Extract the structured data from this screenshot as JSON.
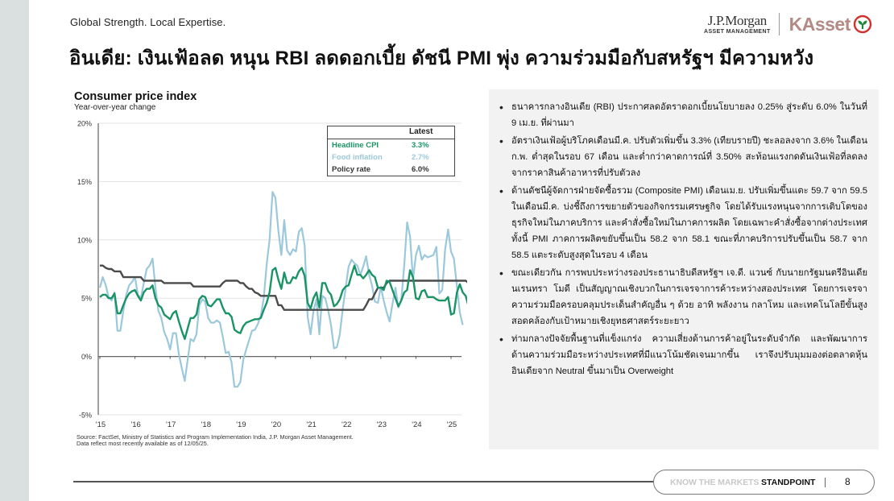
{
  "header": {
    "tagline": "Global Strength. Local Expertise.",
    "title": "อินเดีย: เงินเฟ้อลด หนุน RBI ลดดอกเบี้ย ดัชนี PMI พุ่ง ความร่วมมือกับสหรัฐฯ มีความหวัง",
    "logos": {
      "jpm_name": "J.P.Morgan",
      "jpm_sub": "ASSET MANAGEMENT",
      "kasset": "KAsset",
      "kasset_icon": "kasset-leaf-icon"
    }
  },
  "chart": {
    "title": "Consumer price index",
    "subtitle": "Year-over-year change",
    "legend": {
      "header": "Latest",
      "rows": [
        {
          "label": "Headline CPI",
          "value": "3.3%",
          "color": "#1a9466"
        },
        {
          "label": "Food inflation",
          "value": "2.7%",
          "color": "#9cc8dc"
        },
        {
          "label": "Policy rate",
          "value": "6.0%",
          "color": "#333333"
        }
      ]
    },
    "source_line1": "Source: FactSet, Ministry of Statistics and Program Implementation India, J.P. Morgan Asset Management.",
    "source_line2": "Data reflect most recently available as of 12/05/25."
  },
  "chart_data": {
    "type": "line",
    "title": "Consumer price index",
    "subtitle": "Year-over-year change",
    "xlabel": "",
    "ylabel": "",
    "ylim": [
      -5,
      20
    ],
    "yticks": [
      "20%",
      "15%",
      "10%",
      "5%",
      "0%",
      "-5%"
    ],
    "ytick_values": [
      20,
      15,
      10,
      5,
      0,
      -5
    ],
    "xticks": [
      "'15",
      "'16",
      "'17",
      "'18",
      "'19",
      "'20",
      "'21",
      "'22",
      "'23",
      "'24",
      "'25"
    ],
    "x_start": "2015-01",
    "x_frequency": "monthly",
    "grid": true,
    "legend_position": "top-right table",
    "series": [
      {
        "name": "Headline CPI",
        "color": "#1a9466",
        "latest": 3.3,
        "values": [
          5.1,
          5.3,
          5.3,
          5.0,
          5.0,
          5.4,
          3.7,
          3.7,
          4.4,
          5.0,
          5.4,
          5.6,
          5.7,
          5.2,
          4.8,
          5.5,
          5.8,
          5.8,
          6.1,
          5.0,
          4.4,
          4.2,
          3.6,
          3.4,
          3.2,
          3.7,
          3.9,
          3.0,
          2.2,
          1.5,
          2.4,
          3.3,
          3.3,
          3.6,
          4.9,
          5.2,
          5.1,
          4.4,
          4.3,
          4.6,
          4.9,
          4.9,
          4.2,
          3.7,
          3.7,
          3.4,
          2.3,
          2.1,
          2.0,
          2.6,
          2.9,
          3.0,
          3.1,
          3.2,
          3.2,
          3.3,
          4.0,
          4.6,
          5.5,
          7.4,
          7.6,
          6.6,
          5.8,
          7.2,
          6.3,
          6.3,
          6.8,
          6.7,
          7.3,
          7.6,
          6.9,
          4.6,
          4.1,
          5.0,
          5.5,
          4.2,
          6.3,
          6.3,
          5.6,
          5.3,
          4.3,
          4.5,
          4.9,
          5.7,
          6.0,
          6.1,
          7.0,
          7.8,
          7.0,
          7.0,
          6.7,
          7.0,
          7.4,
          7.0,
          6.8,
          5.9,
          5.9,
          5.7,
          6.5,
          6.4,
          5.7,
          5.0,
          4.3,
          4.8,
          5.5,
          5.7,
          7.4,
          6.8,
          5.0,
          4.9,
          5.6,
          5.7,
          5.1,
          5.1,
          5.1,
          4.9,
          4.8,
          4.8,
          4.8,
          5.1,
          3.6,
          3.7,
          5.5,
          6.2,
          5.5,
          5.2,
          4.3,
          3.6,
          3.3
        ]
      },
      {
        "name": "Food inflation",
        "color": "#9cc8dc",
        "latest": 2.7,
        "values": [
          5.9,
          6.8,
          6.1,
          5.1,
          4.8,
          5.5,
          2.2,
          2.2,
          3.9,
          5.3,
          6.1,
          6.4,
          6.8,
          5.3,
          5.0,
          6.3,
          7.5,
          7.8,
          8.4,
          5.9,
          3.9,
          3.3,
          2.1,
          1.5,
          0.6,
          2.0,
          2.0,
          0.2,
          -1.0,
          -2.1,
          -0.3,
          1.5,
          1.3,
          1.9,
          4.4,
          4.9,
          4.7,
          3.3,
          2.9,
          2.9,
          3.1,
          2.9,
          1.7,
          0.3,
          0.4,
          -0.5,
          -2.6,
          -2.6,
          -2.2,
          -0.3,
          0.6,
          1.4,
          2.2,
          2.3,
          2.8,
          3.5,
          5.0,
          7.9,
          10.0,
          14.1,
          13.6,
          10.8,
          8.7,
          11.7,
          9.1,
          8.7,
          9.2,
          9.0,
          10.7,
          11.0,
          9.5,
          3.4,
          1.9,
          3.9,
          4.9,
          1.9,
          5.2,
          5.0,
          4.0,
          2.7,
          0.7,
          0.8,
          1.9,
          4.1,
          5.9,
          7.7,
          8.3,
          8.0,
          7.8,
          7.0,
          7.7,
          8.6,
          7.0,
          6.1,
          4.7,
          4.6,
          6.0,
          4.8,
          3.8,
          3.0,
          4.5,
          5.9,
          4.2,
          4.8,
          7.8,
          11.5,
          10.3,
          6.6,
          8.7,
          9.5,
          8.3,
          8.7,
          8.5,
          8.6,
          8.7,
          9.4,
          5.4,
          5.7,
          9.2,
          10.9,
          9.0,
          8.4,
          6.0,
          3.8,
          2.7
        ]
      },
      {
        "name": "Policy rate",
        "color": "#4a4a4a",
        "latest": 6.0,
        "values": [
          7.8,
          7.8,
          7.6,
          7.5,
          7.5,
          7.3,
          7.3,
          7.3,
          6.8,
          6.8,
          6.8,
          6.8,
          6.8,
          6.8,
          6.8,
          6.5,
          6.5,
          6.5,
          6.5,
          6.5,
          6.5,
          6.5,
          6.3,
          6.3,
          6.3,
          6.3,
          6.3,
          6.3,
          6.3,
          6.3,
          6.3,
          6.3,
          6.0,
          6.0,
          6.0,
          6.0,
          6.0,
          6.0,
          6.0,
          6.0,
          6.0,
          6.0,
          6.3,
          6.5,
          6.5,
          6.5,
          6.5,
          6.5,
          6.3,
          6.3,
          6.0,
          5.8,
          5.8,
          5.5,
          5.4,
          5.2,
          5.2,
          5.2,
          5.2,
          5.2,
          5.2,
          4.4,
          4.4,
          4.0,
          4.0,
          4.0,
          4.0,
          4.0,
          4.0,
          4.0,
          4.0,
          4.0,
          4.0,
          4.0,
          4.0,
          4.0,
          4.0,
          4.0,
          4.0,
          4.0,
          4.0,
          4.0,
          4.0,
          4.0,
          4.0,
          4.0,
          4.0,
          4.0,
          4.0,
          4.0,
          4.0,
          4.4,
          4.9,
          4.9,
          5.4,
          5.9,
          5.9,
          5.9,
          6.3,
          6.5,
          6.5,
          6.5,
          6.5,
          6.5,
          6.5,
          6.5,
          6.5,
          6.5,
          6.5,
          6.5,
          6.5,
          6.5,
          6.5,
          6.5,
          6.5,
          6.5,
          6.5,
          6.5,
          6.5,
          6.5,
          6.5,
          6.5,
          6.5,
          6.5,
          6.5,
          6.5,
          6.3,
          6.3,
          6.0
        ]
      }
    ]
  },
  "bullets": [
    "ธนาคารกลางอินเดีย (RBI) ประกาศลดอัตราดอกเบี้ยนโยบายลง 0.25% สู่ระดับ 6.0% ในวันที่ 9 เม.ย. ที่ผ่านมา",
    "อัตราเงินเฟ้อผู้บริโภคเดือนมี.ค. ปรับตัวเพิ่มขึ้น 3.3% (เทียบรายปี) ชะลอลงจาก 3.6% ในเดือนก.พ. ต่ำสุดในรอบ 67 เดือน และต่ำกว่าคาดการณ์ที่ 3.50% สะท้อนแรงกดดันเงินเฟ้อที่ลดลงจากราคาสินค้าอาหารที่ปรับตัวลง",
    "ด้านดัชนีผู้จัดการฝ่ายจัดซื้อรวม (Composite PMI) เดือนเม.ย. ปรับเพิ่มขึ้นแตะ 59.7 จาก 59.5 ในเดือนมี.ค. บ่งชี้ถึงการขยายตัวของกิจกรรมเศรษฐกิจ โดยได้รับแรงหนุนจากการเติบโตของธุรกิจใหม่ในภาคบริการ และคำสั่งซื้อใหม่ในภาคการผลิต โดยเฉพาะคำสั่งซื้อจากต่างประเทศ ทั้งนี้ PMI ภาคการผลิตขยับขึ้นเป็น 58.2 จาก 58.1 ขณะที่ภาคบริการปรับขึ้นเป็น 58.7 จาก 58.5 แตะระดับสูงสุดในรอบ 4 เดือน",
    "ขณะเดียวกัน การพบประหว่างรองประธานาธิบดีสหรัฐฯ เจ.ดี. แวนซ์ กับนายกรัฐมนตรีอินเดีย นเรนทรา โมดี เป็นสัญญาณเชิงบวกในการเจรจาการค้าระหว่างสองประเทศ โดยการเจรจาความร่วมมือครอบคลุมประเด็นสำคัญอื่น ๆ ด้วย อาทิ พลังงาน กลาโหม และเทคโนโลยีขั้นสูง สอดคล้องกับเป้าหมายเชิงยุทธศาสตร์ระยะยาว",
    "ท่ามกลางปัจจัยพื้นฐานที่แข็งแกร่ง ความเสี่ยงด้านการค้าอยู่ในระดับจำกัด และพัฒนาการด้านความร่วมมือระหว่างประเทศที่มีแนวโน้มชัดเจนมากขึ้น เราจึงปรับมุมมองต่อตลาดหุ้นอินเดียจาก Neutral ขึ้นมาเป็น Overweight"
  ],
  "footer": {
    "know": "KNOW THE MARKETS",
    "standpoint": "STANDPOINT",
    "page": "8"
  }
}
